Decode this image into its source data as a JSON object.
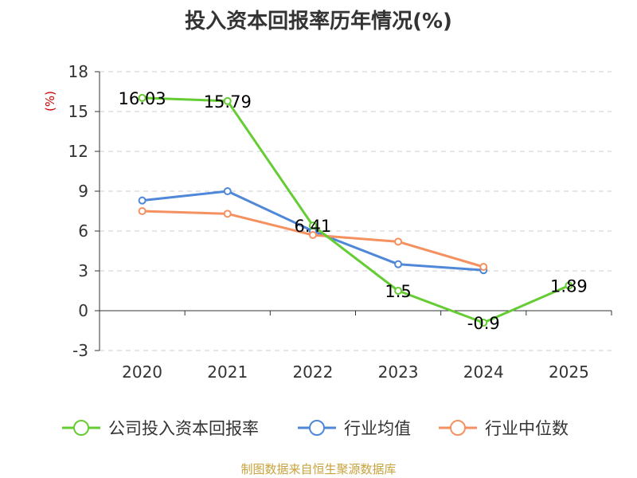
{
  "chart_data": {
    "type": "line",
    "title": "投入资本回报率历年情况(%)",
    "ylabel": "(%)",
    "xlabel": "",
    "categories": [
      "2020",
      "2021",
      "2022",
      "2023",
      "2024",
      "2025"
    ],
    "ylim": [
      -3,
      18
    ],
    "yticks": [
      -3,
      0,
      3,
      6,
      9,
      12,
      15,
      18
    ],
    "grid": true,
    "legend_position": "bottom",
    "series": [
      {
        "name": "公司投入资本回报率",
        "color": "#66cc33",
        "values": [
          16.03,
          15.79,
          6.41,
          1.5,
          -0.9,
          1.89
        ],
        "labels": [
          "16.03",
          "15.79",
          "6.41",
          "1.5",
          "-0.9",
          "1.89"
        ]
      },
      {
        "name": "行业均值",
        "color": "#4f87d9",
        "values": [
          8.3,
          9.0,
          6.0,
          3.5,
          3.05,
          null
        ]
      },
      {
        "name": "行业中位数",
        "color": "#f59160",
        "values": [
          7.5,
          7.3,
          5.7,
          5.2,
          3.3,
          null
        ]
      }
    ]
  },
  "footer": {
    "source": "制图数据来自恒生聚源数据库"
  }
}
